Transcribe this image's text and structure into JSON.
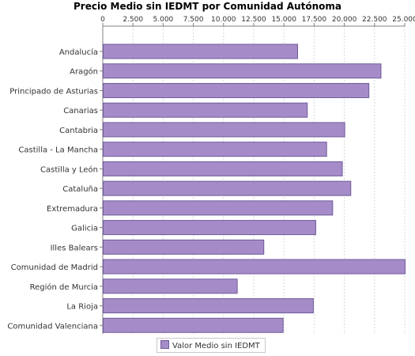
{
  "chart_data": {
    "type": "bar",
    "orientation": "horizontal",
    "title": "Precio Medio sin IEDMT por Comunidad Autónoma",
    "categories": [
      "Andalucía",
      "Aragón",
      "Principado de Asturias",
      "Canarias",
      "Cantabria",
      "Castilla - La Mancha",
      "Castilla y León",
      "Cataluña",
      "Extremadura",
      "Galicia",
      "Illes Balears",
      "Comunidad de Madrid",
      "Región de Murcia",
      "La Rioja",
      "Comunidad Valenciana"
    ],
    "series": [
      {
        "name": "Valor Medio sin IEDMT",
        "values": [
          16100,
          23000,
          22000,
          16900,
          20000,
          18500,
          19800,
          20500,
          19000,
          17600,
          13300,
          25000,
          11100,
          17400,
          14900
        ]
      }
    ],
    "xlim": [
      0,
      25000
    ],
    "tick_values": [
      0,
      2500,
      5000,
      7500,
      10000,
      12500,
      15000,
      17500,
      20000,
      22500,
      25000
    ],
    "tick_labels": [
      "0",
      "2.500",
      "5.000",
      "7.500",
      "10.000",
      "12.500",
      "15.000",
      "17.500",
      "20.000",
      "22.500",
      "25.000"
    ],
    "axis_position": "top",
    "grid": true,
    "legend_position": "bottom",
    "colors": {
      "bar_fill": "#a58cc8",
      "bar_stroke": "#6e5a9a",
      "grid": "#d8d8d8",
      "axis": "#808080"
    }
  }
}
